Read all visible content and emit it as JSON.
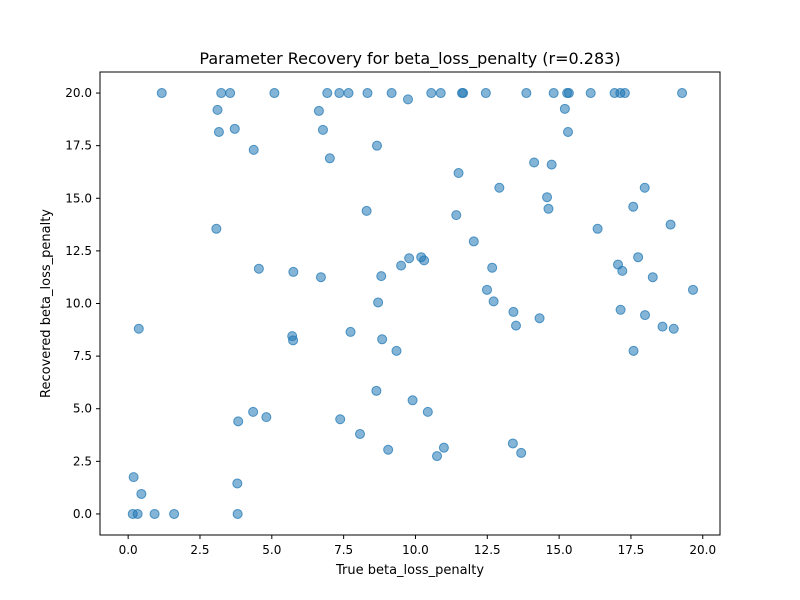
{
  "chart_data": {
    "type": "scatter",
    "title": "Parameter Recovery for beta_loss_penalty (r=0.283)",
    "xlabel": "True beta_loss_penalty",
    "ylabel": "Recovered beta_loss_penalty",
    "xlim": [
      -0.98,
      20.6
    ],
    "ylim": [
      -1.0,
      21.0
    ],
    "xticks": [
      0.0,
      2.5,
      5.0,
      7.5,
      10.0,
      12.5,
      15.0,
      17.5,
      20.0
    ],
    "xtick_labels": [
      "0.0",
      "2.5",
      "5.0",
      "7.5",
      "10.0",
      "12.5",
      "15.0",
      "17.5",
      "20.0"
    ],
    "yticks": [
      0.0,
      2.5,
      5.0,
      7.5,
      10.0,
      12.5,
      15.0,
      17.5,
      20.0
    ],
    "ytick_labels": [
      "0.0",
      "2.5",
      "5.0",
      "7.5",
      "10.0",
      "12.5",
      "15.0",
      "17.5",
      "20.0"
    ],
    "grid": false,
    "marker_color": "#1f77b4",
    "marker_alpha": 0.55,
    "points": [
      [
        1.17,
        20.0
      ],
      [
        3.24,
        20.0
      ],
      [
        3.55,
        20.0
      ],
      [
        5.09,
        20.0
      ],
      [
        6.93,
        20.0
      ],
      [
        7.35,
        20.0
      ],
      [
        7.67,
        20.0
      ],
      [
        8.33,
        20.0
      ],
      [
        9.17,
        20.0
      ],
      [
        10.55,
        20.0
      ],
      [
        10.88,
        20.0
      ],
      [
        11.62,
        20.0
      ],
      [
        11.66,
        20.0
      ],
      [
        12.45,
        20.0
      ],
      [
        13.86,
        20.0
      ],
      [
        14.81,
        20.0
      ],
      [
        15.28,
        20.0
      ],
      [
        15.34,
        20.0
      ],
      [
        16.1,
        20.0
      ],
      [
        16.93,
        20.0
      ],
      [
        17.13,
        20.0
      ],
      [
        17.29,
        20.0
      ],
      [
        19.28,
        20.0
      ],
      [
        9.74,
        19.7
      ],
      [
        3.11,
        19.2
      ],
      [
        6.64,
        19.15
      ],
      [
        15.2,
        19.25
      ],
      [
        3.16,
        18.15
      ],
      [
        3.71,
        18.3
      ],
      [
        6.78,
        18.25
      ],
      [
        15.31,
        18.15
      ],
      [
        8.66,
        17.5
      ],
      [
        4.37,
        17.3
      ],
      [
        7.02,
        16.9
      ],
      [
        14.13,
        16.7
      ],
      [
        14.74,
        16.6
      ],
      [
        11.5,
        16.2
      ],
      [
        12.92,
        15.5
      ],
      [
        17.98,
        15.5
      ],
      [
        14.58,
        15.05
      ],
      [
        17.58,
        14.6
      ],
      [
        14.63,
        14.5
      ],
      [
        8.3,
        14.4
      ],
      [
        11.42,
        14.2
      ],
      [
        18.88,
        13.75
      ],
      [
        3.07,
        13.55
      ],
      [
        16.34,
        13.55
      ],
      [
        12.03,
        12.95
      ],
      [
        9.78,
        12.15
      ],
      [
        10.2,
        12.2
      ],
      [
        10.3,
        12.05
      ],
      [
        17.75,
        12.2
      ],
      [
        17.05,
        11.85
      ],
      [
        9.5,
        11.8
      ],
      [
        12.67,
        11.7
      ],
      [
        4.55,
        11.65
      ],
      [
        17.2,
        11.55
      ],
      [
        5.75,
        11.5
      ],
      [
        8.81,
        11.3
      ],
      [
        6.71,
        11.25
      ],
      [
        18.26,
        11.25
      ],
      [
        12.49,
        10.65
      ],
      [
        19.66,
        10.65
      ],
      [
        8.7,
        10.05
      ],
      [
        12.72,
        10.1
      ],
      [
        17.14,
        9.7
      ],
      [
        13.41,
        9.6
      ],
      [
        17.99,
        9.45
      ],
      [
        14.32,
        9.3
      ],
      [
        13.5,
        8.95
      ],
      [
        18.6,
        8.9
      ],
      [
        18.99,
        8.8
      ],
      [
        0.37,
        8.8
      ],
      [
        7.74,
        8.65
      ],
      [
        5.71,
        8.45
      ],
      [
        5.74,
        8.25
      ],
      [
        8.84,
        8.3
      ],
      [
        9.34,
        7.75
      ],
      [
        17.59,
        7.75
      ],
      [
        8.64,
        5.85
      ],
      [
        9.9,
        5.4
      ],
      [
        4.35,
        4.85
      ],
      [
        10.43,
        4.85
      ],
      [
        4.81,
        4.6
      ],
      [
        7.38,
        4.5
      ],
      [
        3.83,
        4.4
      ],
      [
        8.07,
        3.8
      ],
      [
        13.39,
        3.35
      ],
      [
        10.99,
        3.15
      ],
      [
        9.05,
        3.05
      ],
      [
        13.68,
        2.9
      ],
      [
        10.75,
        2.75
      ],
      [
        0.19,
        1.75
      ],
      [
        3.8,
        1.45
      ],
      [
        0.46,
        0.95
      ],
      [
        0.16,
        0.0
      ],
      [
        0.33,
        0.0
      ],
      [
        0.92,
        0.0
      ],
      [
        1.6,
        0.0
      ],
      [
        3.81,
        0.0
      ]
    ]
  }
}
